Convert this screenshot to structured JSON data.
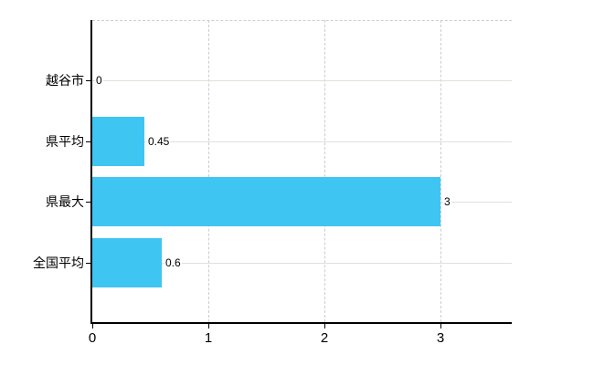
{
  "chart_data": {
    "type": "bar",
    "orientation": "horizontal",
    "title": "",
    "categories": [
      "越谷市",
      "県平均",
      "県最大",
      "全国平均"
    ],
    "values": [
      0,
      0.45,
      3,
      0.6
    ],
    "value_labels": [
      "0",
      "0.45",
      "3",
      "0.6"
    ],
    "x_axis": {
      "ticks": [
        0,
        1,
        2,
        3
      ],
      "tick_labels": [
        "0",
        "1",
        "2",
        "3"
      ],
      "range": [
        0,
        3.6
      ]
    },
    "grid": {
      "horizontal": "solid",
      "vertical": "dashed",
      "top_frame": "dashed"
    },
    "legend": null,
    "colors": {
      "bar": "#3FC5F1",
      "axis": "#000000",
      "hgrid": "#dce3da",
      "vgrid": "#c9ccd4",
      "frame": "#d4ccd2",
      "text": "#000000",
      "background": "#ffffff"
    }
  }
}
